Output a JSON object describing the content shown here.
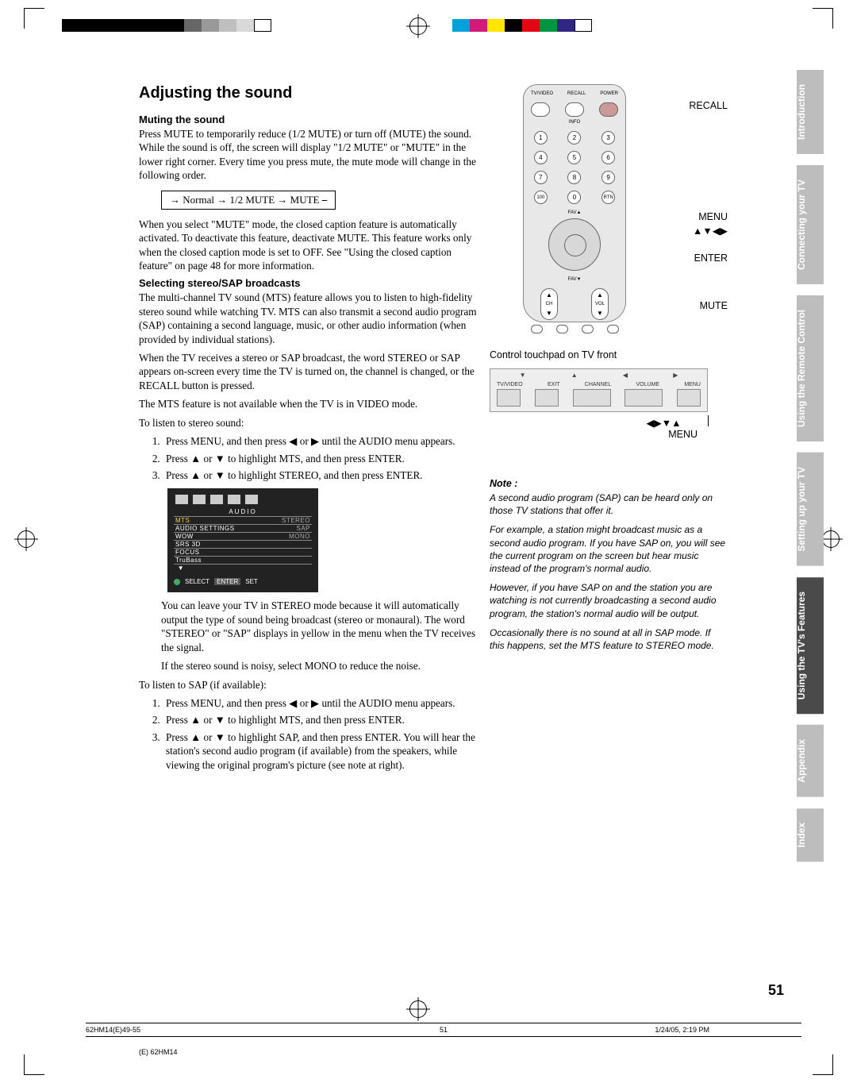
{
  "title": "Adjusting the sound",
  "muting": {
    "heading": "Muting the sound",
    "p1": "Press MUTE to temporarily reduce (1/2 MUTE) or turn off (MUTE) the sound. While the sound is off, the screen will display \"1/2 MUTE\" or \"MUTE\" in the lower right corner. Every time you press mute, the mute mode will change in the following order.",
    "cycle": "→ Normal → 1/2 MUTE → MUTE ⎯",
    "p2": "When you select \"MUTE\" mode, the closed caption feature is automatically activated. To deactivate this feature, deactivate MUTE. This feature works only when the closed caption mode is set to OFF. See \"Using the closed caption feature\" on page 48 for more information."
  },
  "sap": {
    "heading": "Selecting stereo/SAP broadcasts",
    "p1": "The multi-channel TV sound (MTS) feature allows you to listen to high-fidelity stereo sound while watching TV. MTS can also transmit a second audio program (SAP) containing a second language, music, or other audio information (when provided by individual stations).",
    "p2": "When the TV receives a stereo or SAP broadcast, the word STEREO or SAP appears on-screen every time the TV is turned on, the channel is changed, or the RECALL button is pressed.",
    "p3": "The MTS feature is not available when the TV is in VIDEO mode.",
    "lead1": "To listen to stereo sound:",
    "s1": "Press MENU, and then press ◀ or ▶ until the AUDIO menu appears.",
    "s2": "Press ▲ or ▼ to highlight MTS, and then press ENTER.",
    "s3": "Press ▲ or ▼ to highlight STEREO, and then press ENTER.",
    "afterbox1": "You can leave your TV in STEREO mode because it will automatically output the type of sound being broadcast (stereo or monaural). The word \"STEREO\" or \"SAP\" displays in yellow in the menu when the TV receives the signal.",
    "afterbox2": "If the stereo sound is noisy, select MONO to reduce the noise.",
    "lead2": "To listen to SAP (if available):",
    "t1": "Press MENU, and then press ◀ or ▶ until the AUDIO menu appears.",
    "t2": "Press ▲ or ▼ to highlight MTS, and then press ENTER.",
    "t3": "Press ▲ or ▼ to highlight SAP, and then press ENTER. You will hear the station's second audio program (if available) from the speakers, while viewing the original program's picture (see note at right)."
  },
  "osd": {
    "title": "AUDIO",
    "rows": [
      {
        "l": "MTS",
        "r": "STEREO",
        "sel": true
      },
      {
        "l": "AUDIO SETTINGS",
        "r": "SAP"
      },
      {
        "l": "WOW",
        "r": "MONO"
      },
      {
        "l": "SRS 3D",
        "r": ""
      },
      {
        "l": "FOCUS",
        "r": ""
      },
      {
        "l": "TruBass",
        "r": ""
      }
    ],
    "foot_select": "SELECT",
    "foot_enter": "ENTER",
    "foot_set": "SET"
  },
  "remote_labels": {
    "recall": "RECALL",
    "menu": "MENU",
    "arrows": "▲▼◀▶",
    "enter": "ENTER",
    "mute": "MUTE"
  },
  "touchpad": {
    "title": "Control touchpad on TV front",
    "arrows": "◀▶▼▲",
    "menu": "MENU",
    "lbls": [
      "TV/VIDEO",
      "EXIT",
      "CHANNEL",
      "VOLUME",
      "MENU"
    ]
  },
  "note": {
    "heading": "Note :",
    "p1": "A second audio program (SAP) can be heard only on those TV stations that offer it.",
    "p2": "For example, a station might broadcast music as a second audio program. If you have SAP on, you will see the current program on the screen but hear music instead of the program's normal audio.",
    "p3": "However, if you have SAP on and the station you are watching is not currently broadcasting a second audio program, the station's normal audio will be output.",
    "p4": "Occasionally there is no sound at all in SAP mode. If this happens, set the MTS feature to STEREO mode."
  },
  "tabs": [
    "Introduction",
    "Connecting your TV",
    "Using the Remote Control",
    "Setting up your TV",
    "Using the TV's Features",
    "Appendix",
    "Index"
  ],
  "tabs_active_index": 4,
  "page_number": "51",
  "footer": {
    "file": "62HM14(E)49-55",
    "page": "51",
    "date": "1/24/05, 2:19 PM"
  },
  "doc_id": "(E) 62HM14",
  "colors": {
    "tab_inactive": "#bdbdbd",
    "tab_active": "#4a4a4a",
    "osd_bg": "#222222",
    "osd_highlight": "#f4d442"
  },
  "colorbar1": [
    "#000",
    "#000",
    "#000",
    "#000",
    "#000",
    "#000",
    "#000",
    "#666",
    "#999",
    "#bfbfbf",
    "#d9d9d9",
    "#fff"
  ],
  "colorbar2": [
    "#00a3d9",
    "#d11a7a",
    "#ffe600",
    "#000",
    "#e30613",
    "#009640",
    "#312783",
    "#fff"
  ]
}
